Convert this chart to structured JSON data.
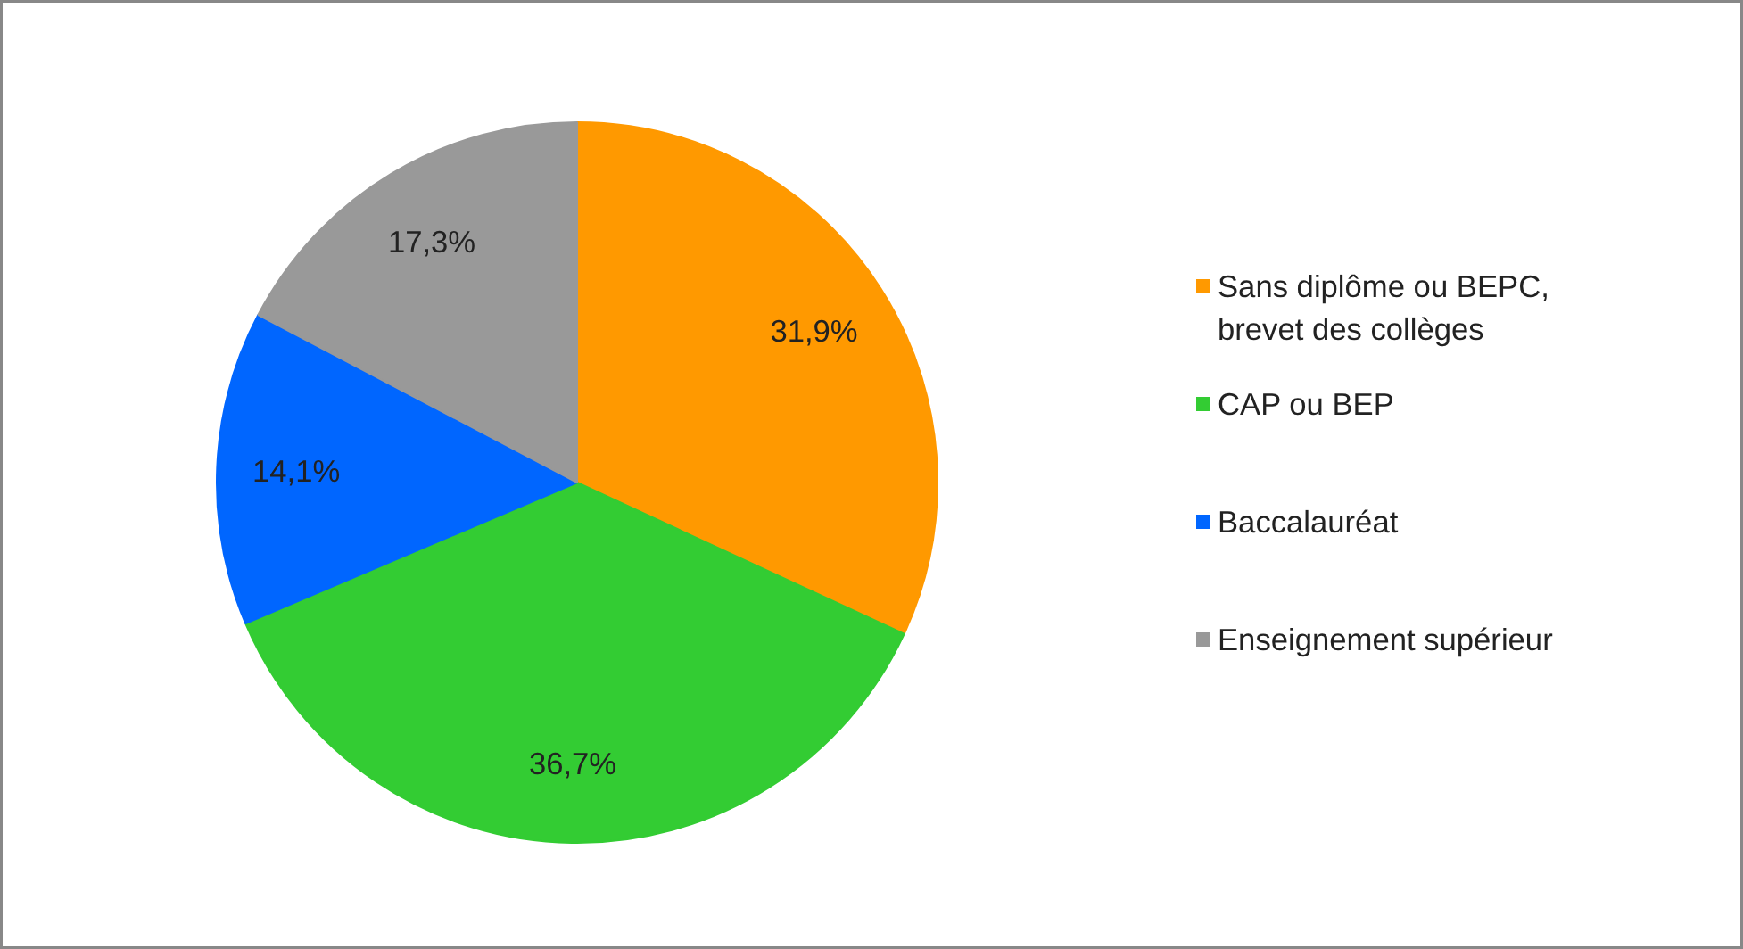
{
  "chart_data": {
    "type": "pie",
    "categories": [
      "Sans diplôme ou BEPC, brevet des collèges",
      "CAP ou BEP",
      "Baccalauréat",
      "Enseignement supérieur"
    ],
    "values": [
      31.9,
      36.7,
      14.1,
      17.3
    ],
    "colors": [
      "#ff9900",
      "#33cc33",
      "#0066ff",
      "#999999"
    ],
    "value_labels": [
      "31,9%",
      "36,7%",
      "14,1%",
      "17,3%"
    ],
    "legend": "right"
  }
}
